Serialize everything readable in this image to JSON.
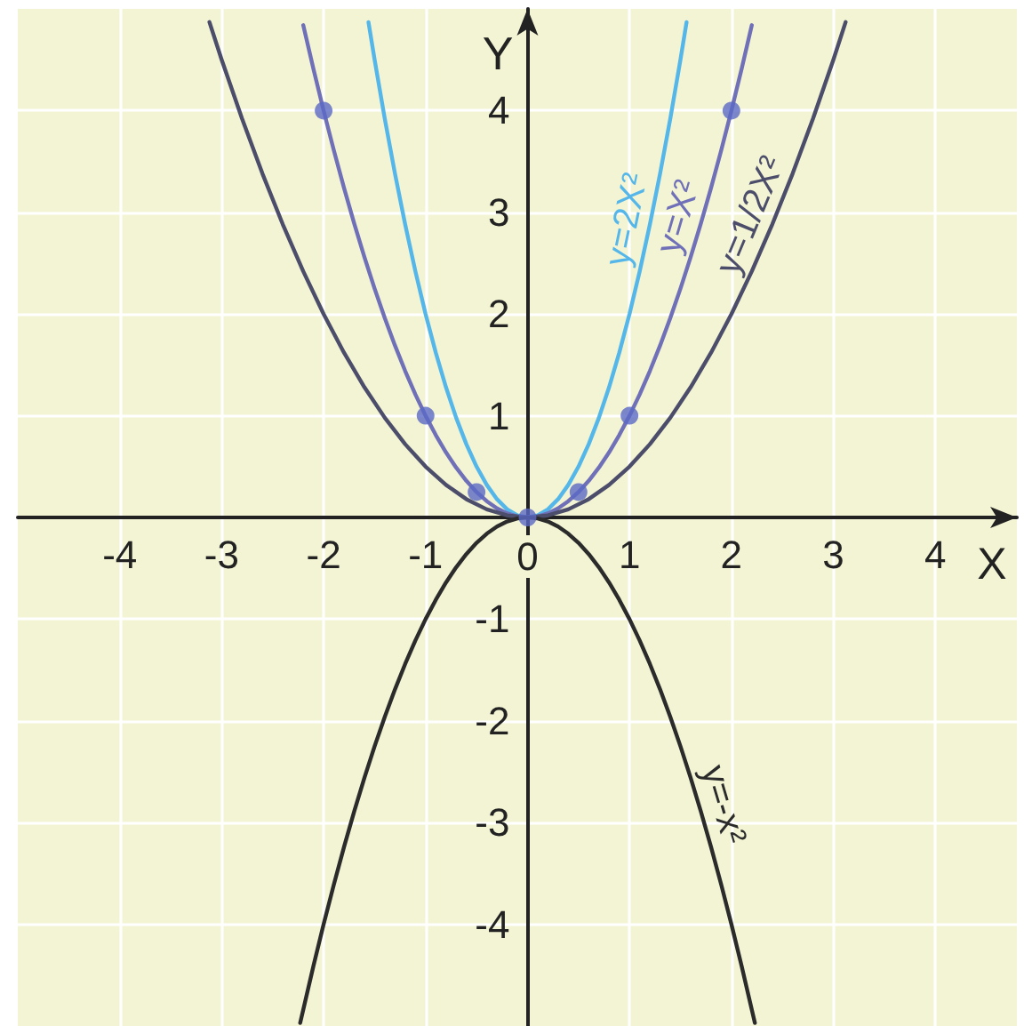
{
  "chart_data": {
    "type": "line",
    "xlabel": "X",
    "ylabel": "Y",
    "xlim": [
      -5,
      4.8
    ],
    "ylim": [
      -5,
      5
    ],
    "xticks": [
      -4,
      -3,
      -2,
      -1,
      0,
      1,
      2,
      3,
      4
    ],
    "yticks": [
      -4,
      -3,
      -2,
      -1,
      1,
      2,
      3,
      4
    ],
    "grid": true,
    "series": [
      {
        "name": "y=2X²",
        "color": "#55b6ea",
        "x": [
          -1.56,
          -1.5,
          -1.4,
          -1.3,
          -1.2,
          -1.1,
          -1,
          -0.9,
          -0.8,
          -0.7,
          -0.6,
          -0.5,
          -0.4,
          -0.3,
          -0.2,
          -0.1,
          0,
          0.1,
          0.2,
          0.3,
          0.4,
          0.5,
          0.6,
          0.7,
          0.8,
          0.9,
          1,
          1.1,
          1.2,
          1.3,
          1.4,
          1.5,
          1.56
        ],
        "values": [
          4.87,
          4.5,
          3.92,
          3.38,
          2.88,
          2.42,
          2,
          1.62,
          1.28,
          0.98,
          0.72,
          0.5,
          0.32,
          0.18,
          0.08,
          0.02,
          0,
          0.02,
          0.08,
          0.18,
          0.32,
          0.5,
          0.72,
          0.98,
          1.28,
          1.62,
          2,
          2.42,
          2.88,
          3.38,
          3.92,
          4.5,
          4.87
        ]
      },
      {
        "name": "y=X²",
        "color": "#6f70b8",
        "x": [
          -2.2,
          -2.1,
          -2,
          -1.9,
          -1.8,
          -1.7,
          -1.6,
          -1.5,
          -1.4,
          -1.3,
          -1.2,
          -1.1,
          -1,
          -0.9,
          -0.8,
          -0.7,
          -0.6,
          -0.5,
          -0.4,
          -0.3,
          -0.2,
          -0.1,
          0,
          0.1,
          0.2,
          0.3,
          0.4,
          0.5,
          0.6,
          0.7,
          0.8,
          0.9,
          1,
          1.1,
          1.2,
          1.3,
          1.4,
          1.5,
          1.6,
          1.7,
          1.8,
          1.9,
          2,
          2.1,
          2.2
        ],
        "values": [
          4.84,
          4.41,
          4,
          3.61,
          3.24,
          2.89,
          2.56,
          2.25,
          1.96,
          1.69,
          1.44,
          1.21,
          1,
          0.81,
          0.64,
          0.49,
          0.36,
          0.25,
          0.16,
          0.09,
          0.04,
          0.01,
          0,
          0.01,
          0.04,
          0.09,
          0.16,
          0.25,
          0.36,
          0.49,
          0.64,
          0.81,
          1,
          1.21,
          1.44,
          1.69,
          1.96,
          2.25,
          2.56,
          2.89,
          3.24,
          3.61,
          4,
          4.41,
          4.84
        ]
      },
      {
        "name": "y=1/2X²",
        "color": "#4b4d6b",
        "x": [
          -3.12,
          -3,
          -2.8,
          -2.6,
          -2.4,
          -2.2,
          -2,
          -1.8,
          -1.6,
          -1.4,
          -1.2,
          -1,
          -0.8,
          -0.6,
          -0.4,
          -0.2,
          0,
          0.2,
          0.4,
          0.6,
          0.8,
          1,
          1.2,
          1.4,
          1.6,
          1.8,
          2,
          2.2,
          2.4,
          2.6,
          2.8,
          3,
          3.12
        ],
        "values": [
          4.87,
          4.5,
          3.92,
          3.38,
          2.88,
          2.42,
          2,
          1.62,
          1.28,
          0.98,
          0.72,
          0.5,
          0.32,
          0.18,
          0.08,
          0.02,
          0,
          0.02,
          0.08,
          0.18,
          0.32,
          0.5,
          0.72,
          0.98,
          1.28,
          1.62,
          2,
          2.42,
          2.88,
          3.38,
          3.92,
          4.5,
          4.87
        ]
      },
      {
        "name": "y=-x²",
        "color": "#2b2b2b",
        "x": [
          -2.23,
          -2.2,
          -2.1,
          -2,
          -1.9,
          -1.8,
          -1.7,
          -1.6,
          -1.5,
          -1.4,
          -1.3,
          -1.2,
          -1.1,
          -1,
          -0.9,
          -0.8,
          -0.7,
          -0.6,
          -0.5,
          -0.4,
          -0.3,
          -0.2,
          -0.1,
          0,
          0.1,
          0.2,
          0.3,
          0.4,
          0.5,
          0.6,
          0.7,
          0.8,
          0.9,
          1,
          1.1,
          1.2,
          1.3,
          1.4,
          1.5,
          1.6,
          1.7,
          1.8,
          1.9,
          2,
          2.1,
          2.2,
          2.23
        ],
        "values": [
          -4.97,
          -4.84,
          -4.41,
          -4,
          -3.61,
          -3.24,
          -2.89,
          -2.56,
          -2.25,
          -1.96,
          -1.69,
          -1.44,
          -1.21,
          -1,
          -0.81,
          -0.64,
          -0.49,
          -0.36,
          -0.25,
          -0.16,
          -0.09,
          -0.04,
          -0.01,
          0,
          -0.01,
          -0.04,
          -0.09,
          -0.16,
          -0.25,
          -0.36,
          -0.49,
          -0.64,
          -0.81,
          -1,
          -1.21,
          -1.44,
          -1.69,
          -1.96,
          -2.25,
          -2.56,
          -2.89,
          -3.24,
          -3.61,
          -4,
          -4.41,
          -4.84,
          -4.97
        ]
      },
      {
        "type": "scatter",
        "marker": "circle",
        "color": "#5b69c6",
        "x": [
          -2,
          -1,
          -0.5,
          0,
          0.5,
          1,
          2
        ],
        "values": [
          4,
          1,
          0.25,
          0,
          0.25,
          1,
          4
        ]
      }
    ]
  }
}
